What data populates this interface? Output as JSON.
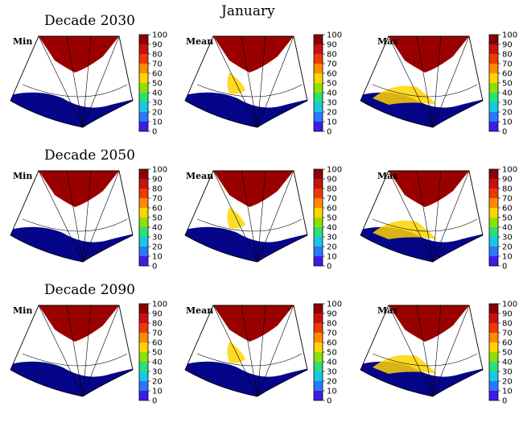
{
  "figure": {
    "title": "January",
    "rows": [
      {
        "label": "Decade 2030",
        "panels": [
          {
            "label": "Min"
          },
          {
            "label": "Mean"
          },
          {
            "label": "Max"
          }
        ]
      },
      {
        "label": "Decade 2050",
        "panels": [
          {
            "label": "Min"
          },
          {
            "label": "Mean"
          },
          {
            "label": "Max"
          }
        ]
      },
      {
        "label": "Decade 2090",
        "panels": [
          {
            "label": "Min"
          },
          {
            "label": "Mean"
          },
          {
            "label": "Max"
          }
        ]
      }
    ],
    "colorbar": {
      "ticks": [
        "100",
        "90",
        "80",
        "70",
        "60",
        "50",
        "40",
        "30",
        "20",
        "10",
        "0"
      ],
      "colors": [
        "#8b0000",
        "#c81010",
        "#ee3a00",
        "#ff8a00",
        "#ffd400",
        "#8fe000",
        "#2ae07a",
        "#17c8e6",
        "#2a78ff",
        "#3a1ee8",
        "#00008c"
      ]
    },
    "colors": {
      "ocean": "#05058a",
      "ice": "#9b0000",
      "land": "#ffffff",
      "grid": "#000000"
    }
  }
}
